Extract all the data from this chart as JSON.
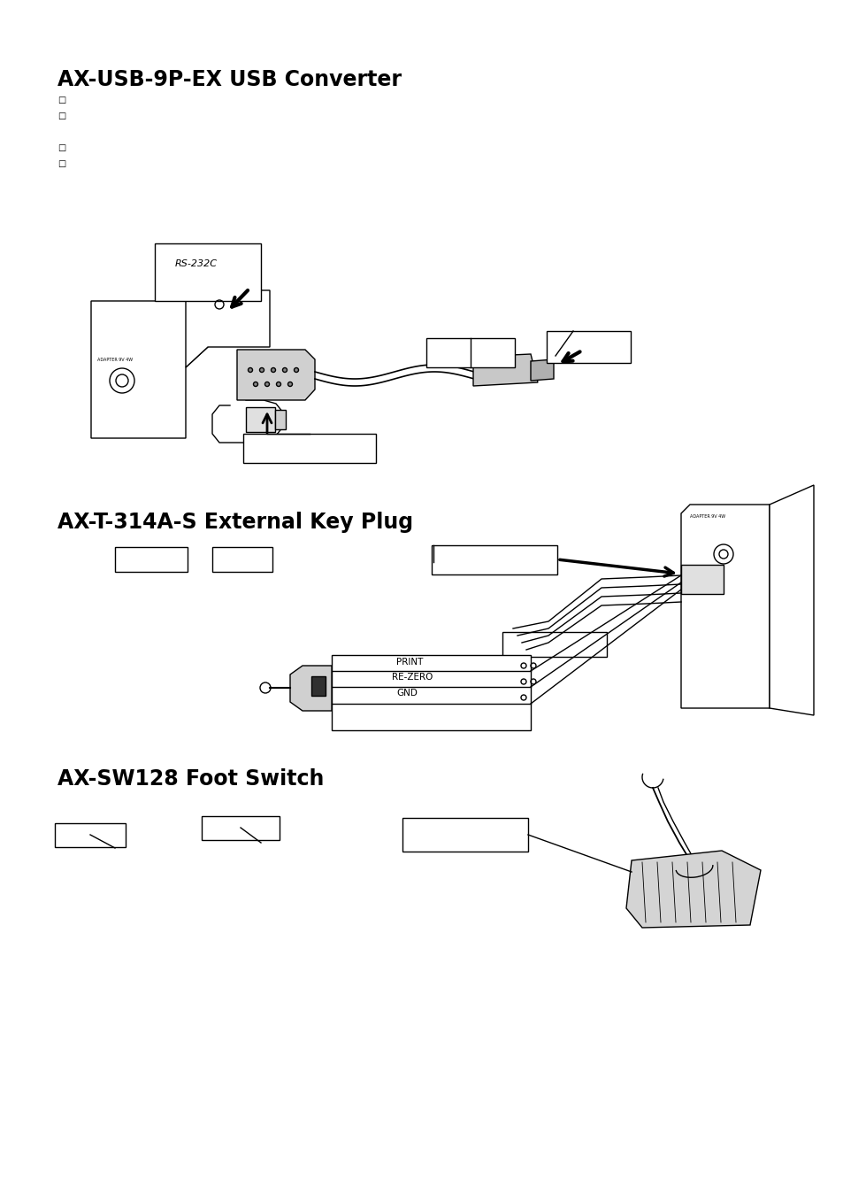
{
  "title1": "AX-USB-9P-EX USB Converter",
  "title2": "AX-T-314A-S External Key Plug",
  "title3": "AX-SW128 Foot Switch",
  "bg_color": "#ffffff",
  "lc": "#000000",
  "bullet": "□",
  "print_label": "PRINT",
  "rezero_label": "RE-ZERO",
  "gnd_label": "GND",
  "title_fontsize": 17,
  "lw": 1.0
}
